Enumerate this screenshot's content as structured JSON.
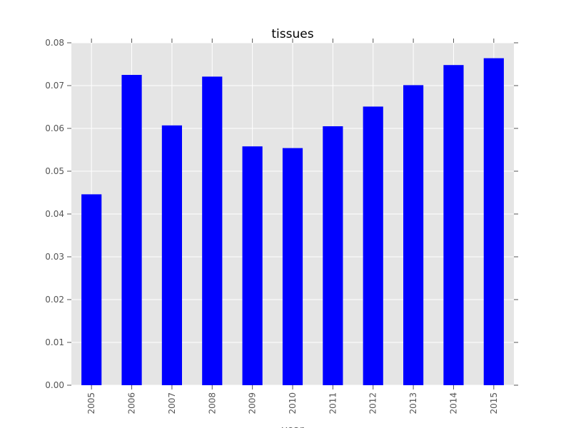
{
  "chart_data": {
    "type": "bar",
    "title": "tissues",
    "xlabel": "year",
    "ylabel": "",
    "categories": [
      "2005",
      "2006",
      "2007",
      "2008",
      "2009",
      "2010",
      "2011",
      "2012",
      "2013",
      "2014",
      "2015"
    ],
    "values": [
      0.0446,
      0.0725,
      0.0607,
      0.0721,
      0.0558,
      0.0554,
      0.0605,
      0.0651,
      0.0701,
      0.0748,
      0.0764
    ],
    "ylim": [
      0,
      0.08
    ],
    "yticks": [
      "0.00",
      "0.01",
      "0.02",
      "0.03",
      "0.04",
      "0.05",
      "0.06",
      "0.07",
      "0.08"
    ],
    "grid": true,
    "legend": "none",
    "colors": {
      "bar": "#0000ff",
      "plot_background": "#e5e5e5",
      "grid": "#ffffff",
      "tick": "#555555",
      "title": "#000000"
    }
  }
}
